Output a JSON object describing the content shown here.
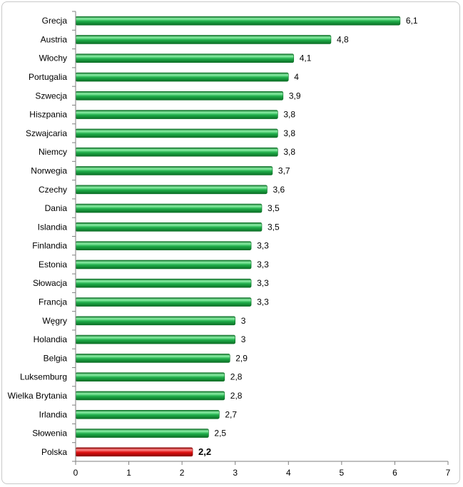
{
  "chart_data": {
    "type": "bar",
    "orientation": "horizontal",
    "categories": [
      "Grecja",
      "Austria",
      "Włochy",
      "Portugalia",
      "Szwecja",
      "Hiszpania",
      "Szwajcaria",
      "Niemcy",
      "Norwegia",
      "Czechy",
      "Dania",
      "Islandia",
      "Finlandia",
      "Estonia",
      "Słowacja",
      "Francja",
      "Węgry",
      "Holandia",
      "Belgia",
      "Luksemburg",
      "Wielka Brytania",
      "Irlandia",
      "Słowenia",
      "Polska"
    ],
    "values": [
      6.1,
      4.8,
      4.1,
      4,
      3.9,
      3.8,
      3.8,
      3.8,
      3.7,
      3.6,
      3.5,
      3.5,
      3.3,
      3.3,
      3.3,
      3.3,
      3,
      3,
      2.9,
      2.8,
      2.8,
      2.7,
      2.5,
      2.2
    ],
    "value_labels": [
      "6,1",
      "4,8",
      "4,1",
      "4",
      "3,9",
      "3,8",
      "3,8",
      "3,8",
      "3,7",
      "3,6",
      "3,5",
      "3,5",
      "3,3",
      "3,3",
      "3,3",
      "3,3",
      "3",
      "3",
      "2,9",
      "2,8",
      "2,8",
      "2,7",
      "2,5",
      "2,2"
    ],
    "highlight": "Polska",
    "xlim": [
      0,
      7
    ],
    "x_ticks": [
      "0",
      "1",
      "2",
      "3",
      "4",
      "5",
      "6",
      "7"
    ],
    "title": "",
    "xlabel": "",
    "ylabel": "",
    "grid": false,
    "legend": "none",
    "colors": {
      "bar": "#1fae4a",
      "bar_light": "#8ef0a8",
      "bar_dark": "#0b6e25",
      "highlight": "#e01010",
      "highlight_light": "#ff8a8a",
      "highlight_dark": "#8a0000",
      "axis": "#7f7f7f"
    }
  }
}
